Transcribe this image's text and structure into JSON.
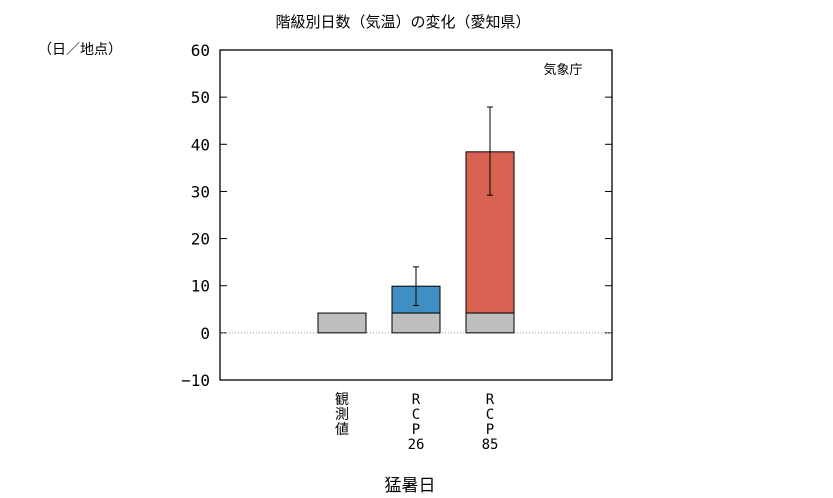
{
  "chart_data": {
    "type": "bar",
    "title": "階級別日数（気温）の変化（愛知県）",
    "ylabel": "（日／地点）",
    "xlabel": "猛暑日",
    "source": "気象庁",
    "ylim": [
      -10,
      60
    ],
    "yticks": [
      60,
      50,
      40,
      30,
      20,
      10,
      0,
      -10
    ],
    "ytick_labels": [
      "60",
      "50",
      "40",
      "30",
      "20",
      "10",
      "0",
      "−10"
    ],
    "categories": [
      {
        "label": [
          "観",
          "測",
          "値"
        ]
      },
      {
        "label": [
          "R",
          "C",
          "P",
          "26"
        ]
      },
      {
        "label": [
          "R",
          "C",
          "P",
          "85"
        ]
      }
    ],
    "baseline_values": [
      4.2,
      4.2,
      4.2
    ],
    "totals": [
      4.2,
      9.9,
      38.4
    ],
    "error_bars": [
      null,
      {
        "low": 5.8,
        "high": 14.0
      },
      {
        "low": 29.2,
        "high": 47.9
      }
    ],
    "colors": {
      "baseline": "#bebebe",
      "categories": [
        "#bebebe",
        "#3f8fc4",
        "#d96352"
      ]
    },
    "zero_line": "dotted"
  }
}
